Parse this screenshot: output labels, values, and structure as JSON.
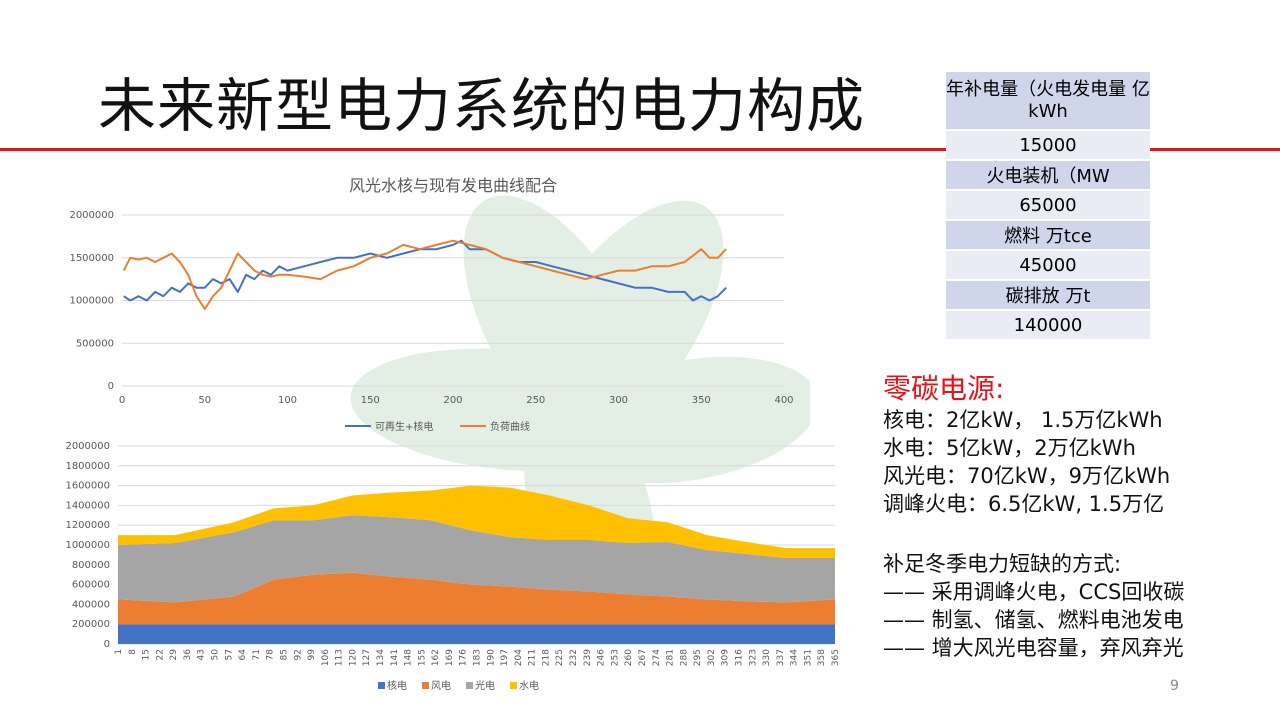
{
  "slide": {
    "title": "未来新型电力系统的电力构成",
    "page_number": "9",
    "accent_color": "#e3141b"
  },
  "table": {
    "rows": [
      {
        "label": "年补电量（火电发电量 亿kWh",
        "value": "15000"
      },
      {
        "label": "火电装机（MW",
        "value": "65000"
      },
      {
        "label": "燃料 万tce",
        "value": "45000"
      },
      {
        "label": "碳排放 万t",
        "value": "140000"
      }
    ]
  },
  "zero_carbon": {
    "title": "零碳电源:",
    "lines": [
      "核电：2亿kW，  1.5万亿kWh",
      "水电：5亿kW，2万亿kWh",
      "风光电：70亿kW，9万亿kWh",
      "调峰火电：6.5亿kW, 1.5万亿"
    ]
  },
  "winter": {
    "title": "补足冬季电力短缺的方式:",
    "lines": [
      "—— 采用调峰火电，CCS回收碳",
      "—— 制氢、储氢、燃料电池发电",
      "—— 增大风光电容量，弃风弃光"
    ]
  },
  "chart_data": [
    {
      "type": "line",
      "title": "风光水核与现有发电曲线配合",
      "xlim": [
        0,
        400
      ],
      "ylim": [
        0,
        2000000
      ],
      "xticks": [
        "0",
        "50",
        "100",
        "150",
        "200",
        "250",
        "300",
        "350",
        "400"
      ],
      "yticks": [
        "0",
        "500000",
        "1000000",
        "1500000",
        "2000000"
      ],
      "grid": true,
      "legend_position": "bottom",
      "series": [
        {
          "name": "可再生+核电",
          "color": "#4472c4",
          "x": [
            1,
            5,
            10,
            15,
            20,
            25,
            30,
            35,
            40,
            45,
            50,
            55,
            60,
            65,
            70,
            75,
            80,
            85,
            90,
            95,
            100,
            110,
            120,
            130,
            140,
            150,
            160,
            170,
            180,
            190,
            200,
            205,
            210,
            220,
            230,
            240,
            250,
            260,
            270,
            280,
            290,
            300,
            310,
            320,
            330,
            340,
            345,
            350,
            355,
            360,
            365
          ],
          "y": [
            1050000,
            1000000,
            1050000,
            1000000,
            1100000,
            1050000,
            1150000,
            1100000,
            1200000,
            1150000,
            1150000,
            1250000,
            1200000,
            1250000,
            1100000,
            1300000,
            1250000,
            1350000,
            1300000,
            1400000,
            1350000,
            1400000,
            1450000,
            1500000,
            1500000,
            1550000,
            1500000,
            1550000,
            1600000,
            1600000,
            1650000,
            1700000,
            1600000,
            1600000,
            1500000,
            1450000,
            1450000,
            1400000,
            1350000,
            1300000,
            1250000,
            1200000,
            1150000,
            1150000,
            1100000,
            1100000,
            1000000,
            1050000,
            1000000,
            1050000,
            1150000
          ]
        },
        {
          "name": "负荷曲线",
          "color": "#ed7d31",
          "x": [
            1,
            5,
            10,
            15,
            20,
            25,
            30,
            35,
            40,
            45,
            50,
            55,
            60,
            65,
            70,
            75,
            80,
            85,
            90,
            95,
            100,
            110,
            120,
            130,
            140,
            150,
            160,
            170,
            180,
            190,
            200,
            210,
            220,
            230,
            240,
            250,
            260,
            270,
            280,
            290,
            300,
            310,
            320,
            330,
            340,
            350,
            355,
            360,
            365
          ],
          "y": [
            1350000,
            1500000,
            1480000,
            1500000,
            1450000,
            1500000,
            1550000,
            1450000,
            1300000,
            1050000,
            900000,
            1050000,
            1150000,
            1350000,
            1550000,
            1450000,
            1350000,
            1300000,
            1280000,
            1300000,
            1300000,
            1280000,
            1250000,
            1350000,
            1400000,
            1500000,
            1550000,
            1650000,
            1600000,
            1650000,
            1700000,
            1650000,
            1600000,
            1500000,
            1450000,
            1400000,
            1350000,
            1300000,
            1250000,
            1300000,
            1350000,
            1350000,
            1400000,
            1400000,
            1450000,
            1600000,
            1500000,
            1500000,
            1600000
          ]
        }
      ]
    },
    {
      "type": "area",
      "stacked": true,
      "xlim": [
        1,
        365
      ],
      "ylim": [
        0,
        2000000
      ],
      "yticks": [
        "0",
        "200000",
        "400000",
        "600000",
        "800000",
        "1000000",
        "1200000",
        "1400000",
        "1600000",
        "1800000",
        "2000000"
      ],
      "xticks": [
        "1",
        "8",
        "15",
        "22",
        "29",
        "36",
        "43",
        "50",
        "57",
        "64",
        "71",
        "78",
        "85",
        "92",
        "99",
        "106",
        "113",
        "120",
        "127",
        "134",
        "141",
        "148",
        "155",
        "162",
        "169",
        "176",
        "183",
        "190",
        "197",
        "204",
        "211",
        "218",
        "225",
        "232",
        "239",
        "246",
        "253",
        "260",
        "267",
        "274",
        "281",
        "288",
        "295",
        "302",
        "309",
        "316",
        "323",
        "330",
        "337",
        "344",
        "351",
        "358",
        "365"
      ],
      "legend_position": "bottom",
      "grid": true,
      "x": [
        1,
        30,
        60,
        80,
        100,
        120,
        140,
        160,
        180,
        200,
        220,
        240,
        260,
        280,
        300,
        320,
        340,
        365
      ],
      "series": [
        {
          "name": "核电",
          "color": "#4472c4",
          "values": [
            200000,
            200000,
            200000,
            200000,
            200000,
            200000,
            200000,
            200000,
            200000,
            200000,
            200000,
            200000,
            200000,
            200000,
            200000,
            200000,
            200000,
            200000
          ]
        },
        {
          "name": "风电",
          "color": "#ed7d31",
          "values": [
            250000,
            220000,
            280000,
            450000,
            500000,
            520000,
            480000,
            450000,
            400000,
            380000,
            350000,
            330000,
            300000,
            280000,
            250000,
            230000,
            220000,
            250000
          ]
        },
        {
          "name": "光电",
          "color": "#a5a5a5",
          "values": [
            550000,
            600000,
            650000,
            600000,
            550000,
            580000,
            600000,
            600000,
            550000,
            500000,
            500000,
            520000,
            520000,
            550000,
            500000,
            480000,
            450000,
            420000
          ]
        },
        {
          "name": "水电",
          "color": "#ffc000",
          "values": [
            100000,
            80000,
            100000,
            120000,
            150000,
            200000,
            250000,
            300000,
            450000,
            500000,
            450000,
            350000,
            250000,
            200000,
            150000,
            120000,
            100000,
            100000
          ]
        }
      ]
    }
  ]
}
